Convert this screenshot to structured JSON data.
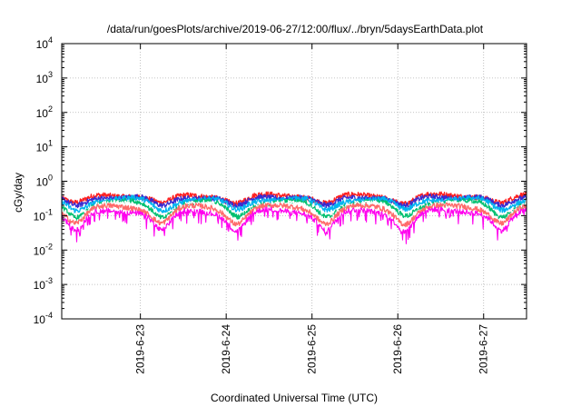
{
  "chart_data": {
    "type": "line",
    "title": "/data/run/goesPlots/archive/2019-06-27/12:00/flux/../bryn/5daysEarthData.plot",
    "xlabel": "Coordinated Universal Time (UTC)",
    "ylabel": "cGy/day",
    "yscale": "log",
    "ylim": [
      0.0001,
      10000
    ],
    "xlim": [
      "2019-06-22 02:00",
      "2019-06-27 12:00"
    ],
    "grid": true,
    "yticks": [
      {
        "value": 0.0001,
        "base": "10",
        "exp": "-4"
      },
      {
        "value": 0.001,
        "base": "10",
        "exp": "-3"
      },
      {
        "value": 0.01,
        "base": "10",
        "exp": "-2"
      },
      {
        "value": 0.1,
        "base": "10",
        "exp": "-1"
      },
      {
        "value": 1,
        "base": "10",
        "exp": "0"
      },
      {
        "value": 10,
        "base": "10",
        "exp": "1"
      },
      {
        "value": 100,
        "base": "10",
        "exp": "2"
      },
      {
        "value": 1000,
        "base": "10",
        "exp": "3"
      },
      {
        "value": 10000,
        "base": "10",
        "exp": "4"
      }
    ],
    "xticks": [
      {
        "value": "2019-06-23 00:00",
        "label": "2019-6-23"
      },
      {
        "value": "2019-06-24 00:00",
        "label": "2019-6-24"
      },
      {
        "value": "2019-06-25 00:00",
        "label": "2019-6-25"
      },
      {
        "value": "2019-06-26 00:00",
        "label": "2019-6-26"
      },
      {
        "value": "2019-06-27 00:00",
        "label": "2019-6-27"
      }
    ],
    "series": [
      {
        "color": "#ff2020",
        "level": 0.4,
        "dip": 0.45
      },
      {
        "color": "#3a2bd0",
        "level": 0.36,
        "dip": 0.5
      },
      {
        "color": "#00b4f0",
        "level": 0.31,
        "dip": 0.55
      },
      {
        "color": "#00c070",
        "level": 0.24,
        "dip": 0.6
      },
      {
        "color": "#ffffff",
        "level": 0.21,
        "dip": 0.62
      },
      {
        "color": "#ff6a6a",
        "level": 0.18,
        "dip": 0.65
      },
      {
        "color": "#ff00ee",
        "level": 0.14,
        "dip": 0.75
      }
    ],
    "dip_times": [
      "2019-06-22 06:00",
      "2019-06-23 06:00",
      "2019-06-24 03:00",
      "2019-06-25 04:00",
      "2019-06-26 02:00",
      "2019-06-27 05:00"
    ]
  }
}
